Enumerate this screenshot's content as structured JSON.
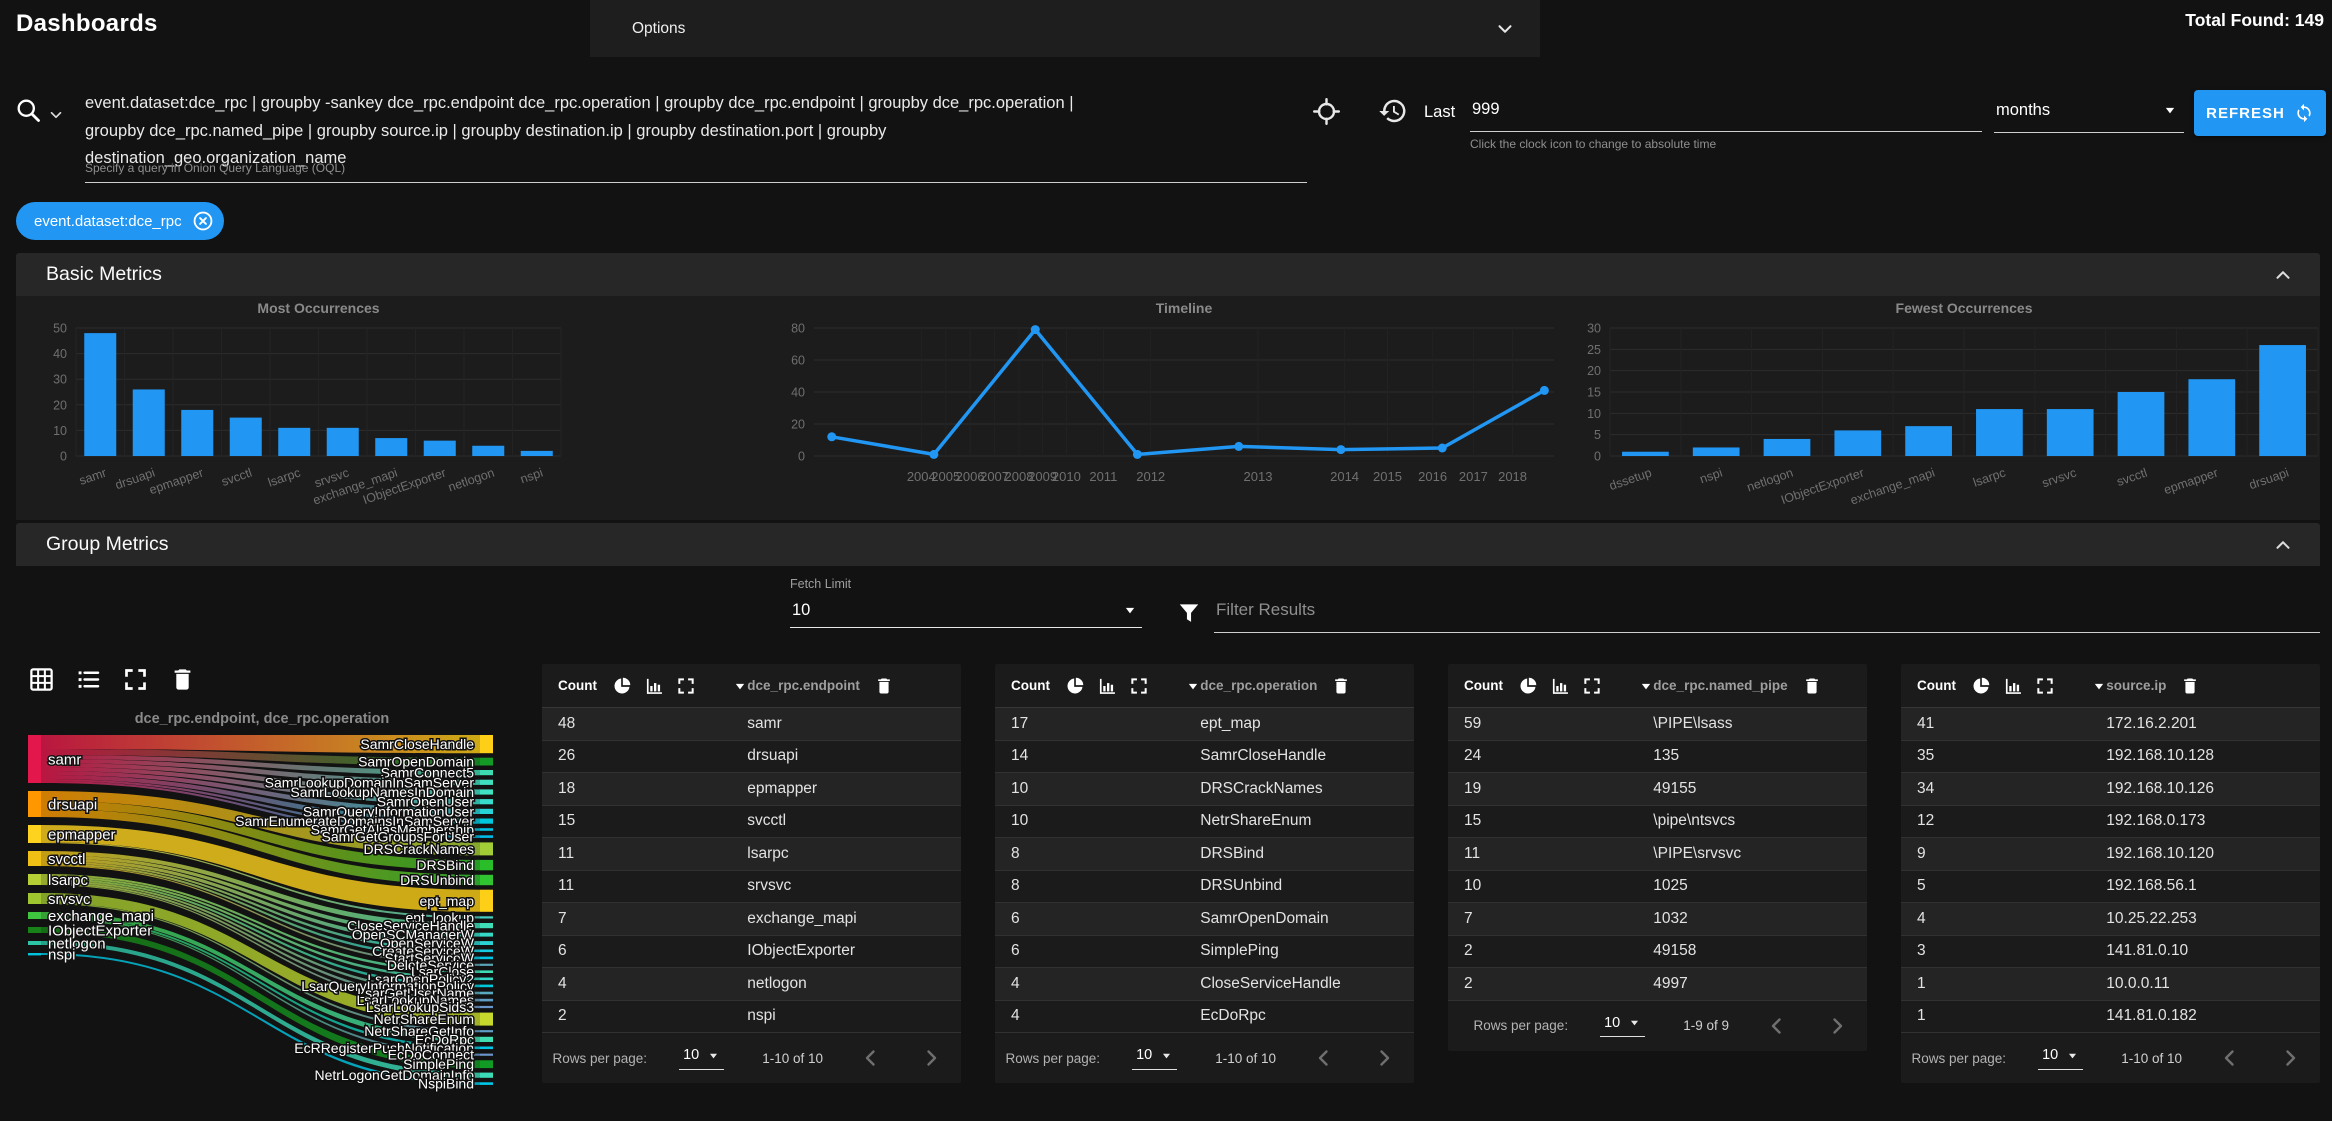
{
  "app": {
    "title": "Dashboards",
    "options_label": "Options",
    "total_found": "Total Found: 149"
  },
  "query": {
    "text": "event.dataset:dce_rpc | groupby -sankey dce_rpc.endpoint dce_rpc.operation | groupby dce_rpc.endpoint | groupby dce_rpc.operation | groupby dce_rpc.named_pipe | groupby source.ip | groupby destination.ip | groupby destination.port | groupby destination_geo.organization_name",
    "hint": "Specify a query in Onion Query Language (OQL)",
    "time": {
      "last_label": "Last",
      "value": "999",
      "units": "months",
      "hint": "Click the clock icon to change to absolute time"
    },
    "refresh_label": "REFRESH"
  },
  "chip": {
    "label": "event.dataset:dce_rpc"
  },
  "panels": {
    "basic_title": "Basic Metrics",
    "group_title": "Group Metrics"
  },
  "controls": {
    "fetch_limit_label": "Fetch Limit",
    "fetch_limit_value": "10",
    "filter_placeholder": "Filter Results"
  },
  "accent": {
    "blue": "#2196f3"
  },
  "chart_data": [
    {
      "type": "bar",
      "title": "Most Occurrences",
      "categories": [
        "samr",
        "drsuapi",
        "epmapper",
        "svcctl",
        "lsarpc",
        "srvsvc",
        "exchange_mapi",
        "IObjectExporter",
        "netlogon",
        "nspi"
      ],
      "values": [
        48,
        26,
        18,
        15,
        11,
        11,
        7,
        6,
        4,
        2
      ],
      "xlabel": "",
      "ylabel": "",
      "ylim": [
        0,
        50
      ],
      "yticks": [
        0,
        10,
        20,
        30,
        40,
        50
      ],
      "bar_color": "#2196f3",
      "grid": true
    },
    {
      "type": "line",
      "title": "Timeline",
      "points": [
        {
          "f": 0.024,
          "v": 12
        },
        {
          "f": 0.162,
          "v": 1
        },
        {
          "f": 0.299,
          "v": 79
        },
        {
          "f": 0.437,
          "v": 1
        },
        {
          "f": 0.574,
          "v": 6
        },
        {
          "f": 0.712,
          "v": 4
        },
        {
          "f": 0.849,
          "v": 5
        },
        {
          "f": 0.987,
          "v": 41
        }
      ],
      "x_ticks": [
        {
          "label": "2004",
          "f": 0.145
        },
        {
          "label": "2005",
          "f": 0.178
        },
        {
          "label": "2006",
          "f": 0.211
        },
        {
          "label": "2007",
          "f": 0.244
        },
        {
          "label": "2008",
          "f": 0.277
        },
        {
          "label": "2009",
          "f": 0.309
        },
        {
          "label": "2010",
          "f": 0.341
        },
        {
          "label": "2011",
          "f": 0.391
        },
        {
          "label": "2012",
          "f": 0.455
        },
        {
          "label": "2013",
          "f": 0.6
        },
        {
          "label": "2014",
          "f": 0.717
        },
        {
          "label": "2015",
          "f": 0.775
        },
        {
          "label": "2016",
          "f": 0.836
        },
        {
          "label": "2017",
          "f": 0.891
        },
        {
          "label": "2018",
          "f": 0.944
        }
      ],
      "xlabel": "",
      "ylabel": "",
      "ylim": [
        0,
        80
      ],
      "yticks": [
        0,
        20,
        40,
        60,
        80
      ],
      "line_color": "#2196f3",
      "grid": true
    },
    {
      "type": "bar",
      "title": "Fewest Occurrences",
      "categories": [
        "dssetup",
        "nspi",
        "netlogon",
        "IObjectExporter",
        "exchange_mapi",
        "lsarpc",
        "srvsvc",
        "svcctl",
        "epmapper",
        "drsuapi"
      ],
      "values": [
        1,
        2,
        4,
        6,
        7,
        11,
        11,
        15,
        18,
        26
      ],
      "xlabel": "",
      "ylabel": "",
      "ylim": [
        0,
        30
      ],
      "yticks": [
        0,
        5,
        10,
        15,
        20,
        25,
        30
      ],
      "bar_color": "#2196f3",
      "grid": true
    }
  ],
  "sankey": {
    "title": "dce_rpc.endpoint, dce_rpc.operation",
    "left": [
      {
        "label": "samr",
        "value": 48,
        "color": "#e3174b"
      },
      {
        "label": "drsuapi",
        "value": 26,
        "color": "#ff9800"
      },
      {
        "label": "epmapper",
        "value": 18,
        "color": "#fdd320"
      },
      {
        "label": "svcctl",
        "value": 15,
        "color": "#f0c014"
      },
      {
        "label": "lsarpc",
        "value": 11,
        "color": "#b5cf35"
      },
      {
        "label": "srvsvc",
        "value": 11,
        "color": "#9fc62f"
      },
      {
        "label": "exchange_mapi",
        "value": 7,
        "color": "#3ec43e"
      },
      {
        "label": "IObjectExporter",
        "value": 6,
        "color": "#178217"
      },
      {
        "label": "netlogon",
        "value": 4,
        "color": "#2cc4a5"
      },
      {
        "label": "nspi",
        "value": 2,
        "color": "#00c4de"
      }
    ],
    "right": [
      {
        "label": "SamrCloseHandle",
        "value": 14,
        "color": "#fdd017",
        "source": "samr"
      },
      {
        "label": "SamrOpenDomain",
        "value": 6,
        "color": "#149b26",
        "source": "samr"
      },
      {
        "label": "SamrConnect5",
        "value": 4,
        "color": "#3ddcb3",
        "source": "samr"
      },
      {
        "label": "SamrLookupDomainInSamServer",
        "value": 4,
        "color": "#3fdfc0",
        "source": "samr"
      },
      {
        "label": "SamrLookupNamesInDomain",
        "value": 4,
        "color": "#41e2c4",
        "source": "samr"
      },
      {
        "label": "SamrOpenUser",
        "value": 4,
        "color": "#38dccd",
        "source": "samr"
      },
      {
        "label": "SamrQueryInformationUser",
        "value": 4,
        "color": "#27d4d8",
        "source": "samr"
      },
      {
        "label": "SamrEnumerateDomainsInSamServer",
        "value": 4,
        "color": "#00c9dd",
        "source": "samr"
      },
      {
        "label": "SamrGetAliasMembership",
        "value": 2,
        "color": "#00c2e4",
        "source": "samr"
      },
      {
        "label": "SamrGetGroupsForUser",
        "value": 2,
        "color": "#00bce8",
        "source": "samr"
      },
      {
        "label": "DRSCrackNames",
        "value": 10,
        "color": "#a3cd37",
        "source": "drsuapi"
      },
      {
        "label": "DRSBind",
        "value": 8,
        "color": "#2abd2a",
        "source": "drsuapi"
      },
      {
        "label": "DRSUnbind",
        "value": 8,
        "color": "#30c430",
        "source": "drsuapi"
      },
      {
        "label": "ept_map",
        "value": 17,
        "color": "#fdd017",
        "source": "epmapper"
      },
      {
        "label": "ept_lookup",
        "value": 1,
        "color": "#45cfc3",
        "source": "epmapper"
      },
      {
        "label": "CloseServiceHandle",
        "value": 4,
        "color": "#3edcb7",
        "source": "svcctl"
      },
      {
        "label": "OpenSCManagerW",
        "value": 3,
        "color": "#36d8c6",
        "source": "svcctl"
      },
      {
        "label": "OpenServiceW",
        "value": 3,
        "color": "#2cd3d3",
        "source": "svcctl"
      },
      {
        "label": "CreateServiceW",
        "value": 2,
        "color": "#14cde0",
        "source": "svcctl"
      },
      {
        "label": "StartServiceW",
        "value": 2,
        "color": "#00c6e4",
        "source": "svcctl"
      },
      {
        "label": "DeleteService",
        "value": 1,
        "color": "#5aa4b4",
        "source": "svcctl"
      },
      {
        "label": "LsarClose",
        "value": 2,
        "color": "#3cdcb4",
        "source": "lsarpc"
      },
      {
        "label": "LsarOpenPolicy2",
        "value": 2,
        "color": "#34d8c4",
        "source": "lsarpc"
      },
      {
        "label": "LsarQueryInformationPolicy",
        "value": 2,
        "color": "#00cbdd",
        "source": "lsarpc"
      },
      {
        "label": "LsarGetUserName",
        "value": 2,
        "color": "#57aabf",
        "source": "lsarpc"
      },
      {
        "label": "LsarLookupNames",
        "value": 2,
        "color": "#5f9dc6",
        "source": "lsarpc"
      },
      {
        "label": "LsarLookupSids3",
        "value": 1,
        "color": "#6a95c9",
        "source": "lsarpc"
      },
      {
        "label": "NetrShareEnum",
        "value": 10,
        "color": "#c6d92c",
        "source": "srvsvc"
      },
      {
        "label": "NetrShareGetInfo",
        "value": 1,
        "color": "#5f9dc6",
        "source": "srvsvc"
      },
      {
        "label": "EcDoRpc",
        "value": 4,
        "color": "#40ddb2",
        "source": "exchange_mapi"
      },
      {
        "label": "EcRRegisterPushNotification",
        "value": 2,
        "color": "#00c8e4",
        "source": "exchange_mapi"
      },
      {
        "label": "EcDoConnect",
        "value": 1,
        "color": "#6a95c9",
        "source": "exchange_mapi"
      },
      {
        "label": "SimplePing",
        "value": 6,
        "color": "#129b24",
        "source": "IObjectExporter"
      },
      {
        "label": "NetrLogonGetDomainInfo",
        "value": 4,
        "color": "#3cdcb8",
        "source": "netlogon"
      },
      {
        "label": "NspiBind",
        "value": 2,
        "color": "#00c8e8",
        "source": "nspi"
      }
    ]
  },
  "tables": {
    "count_label": "Count",
    "rows_per_page_label": "Rows per page:",
    "page_size": "10",
    "items": [
      {
        "field": "dce_rpc.endpoint",
        "rows": [
          [
            "48",
            "samr"
          ],
          [
            "26",
            "drsuapi"
          ],
          [
            "18",
            "epmapper"
          ],
          [
            "15",
            "svcctl"
          ],
          [
            "11",
            "lsarpc"
          ],
          [
            "11",
            "srvsvc"
          ],
          [
            "7",
            "exchange_mapi"
          ],
          [
            "6",
            "IObjectExporter"
          ],
          [
            "4",
            "netlogon"
          ],
          [
            "2",
            "nspi"
          ]
        ],
        "range": "1-10 of 10"
      },
      {
        "field": "dce_rpc.operation",
        "rows": [
          [
            "17",
            "ept_map"
          ],
          [
            "14",
            "SamrCloseHandle"
          ],
          [
            "10",
            "DRSCrackNames"
          ],
          [
            "10",
            "NetrShareEnum"
          ],
          [
            "8",
            "DRSBind"
          ],
          [
            "8",
            "DRSUnbind"
          ],
          [
            "6",
            "SamrOpenDomain"
          ],
          [
            "6",
            "SimplePing"
          ],
          [
            "4",
            "CloseServiceHandle"
          ],
          [
            "4",
            "EcDoRpc"
          ]
        ],
        "range": "1-10 of 10"
      },
      {
        "field": "dce_rpc.named_pipe",
        "rows": [
          [
            "59",
            "\\PIPE\\lsass"
          ],
          [
            "24",
            "135"
          ],
          [
            "19",
            "49155"
          ],
          [
            "15",
            "\\pipe\\ntsvcs"
          ],
          [
            "11",
            "\\PIPE\\srvsvc"
          ],
          [
            "10",
            "1025"
          ],
          [
            "7",
            "1032"
          ],
          [
            "2",
            "49158"
          ],
          [
            "2",
            "4997"
          ]
        ],
        "range": "1-9 of 9"
      },
      {
        "field": "source.ip",
        "rows": [
          [
            "41",
            "172.16.2.201"
          ],
          [
            "35",
            "192.168.10.128"
          ],
          [
            "34",
            "192.168.10.126"
          ],
          [
            "12",
            "192.168.0.173"
          ],
          [
            "9",
            "192.168.10.120"
          ],
          [
            "5",
            "192.168.56.1"
          ],
          [
            "4",
            "10.25.22.253"
          ],
          [
            "3",
            "141.81.0.10"
          ],
          [
            "1",
            "10.0.0.11"
          ],
          [
            "1",
            "141.81.0.182"
          ]
        ],
        "range": "1-10 of 10"
      }
    ]
  }
}
